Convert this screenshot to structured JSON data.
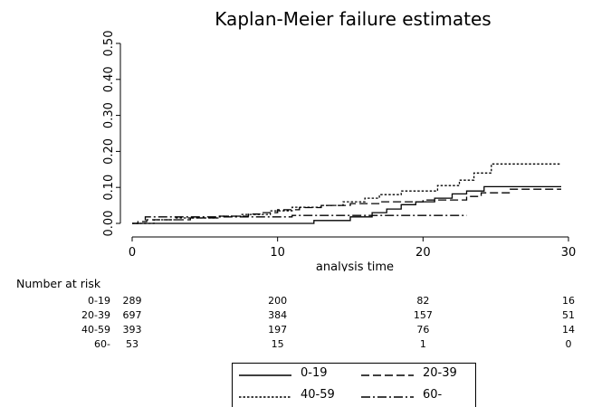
{
  "chart_data": {
    "type": "line",
    "title": "Kaplan-Meier failure estimates",
    "xlabel": "analysis time",
    "ylabel": "",
    "xlim": [
      0,
      30
    ],
    "ylim": [
      0,
      0.5
    ],
    "x_ticks": [
      "0",
      "10",
      "20",
      "30"
    ],
    "y_ticks": [
      "0.00",
      "0.10",
      "0.20",
      "0.30",
      "0.40",
      "0.50"
    ],
    "legend_position": "bottom",
    "series": [
      {
        "name": "0-19",
        "dash": "solid",
        "points": [
          [
            0,
            0
          ],
          [
            12.5,
            0
          ],
          [
            12.5,
            0.008
          ],
          [
            15,
            0.008
          ],
          [
            15,
            0.018
          ],
          [
            16.5,
            0.018
          ],
          [
            16.5,
            0.03
          ],
          [
            17.5,
            0.03
          ],
          [
            17.5,
            0.04
          ],
          [
            18.5,
            0.04
          ],
          [
            18.5,
            0.052
          ],
          [
            19.5,
            0.052
          ],
          [
            19.5,
            0.06
          ],
          [
            20.8,
            0.06
          ],
          [
            20.8,
            0.07
          ],
          [
            22,
            0.07
          ],
          [
            22,
            0.082
          ],
          [
            23,
            0.082
          ],
          [
            23,
            0.09
          ],
          [
            24.2,
            0.09
          ],
          [
            24.2,
            0.102
          ],
          [
            29.5,
            0.102
          ]
        ]
      },
      {
        "name": "20-39",
        "dash": "dashed",
        "points": [
          [
            0,
            0
          ],
          [
            0.4,
            0
          ],
          [
            0.4,
            0.005
          ],
          [
            1,
            0.005
          ],
          [
            1,
            0.01
          ],
          [
            4,
            0.01
          ],
          [
            4,
            0.015
          ],
          [
            6,
            0.015
          ],
          [
            6,
            0.02
          ],
          [
            8,
            0.02
          ],
          [
            8,
            0.026
          ],
          [
            9,
            0.026
          ],
          [
            9,
            0.03
          ],
          [
            10,
            0.03
          ],
          [
            10,
            0.038
          ],
          [
            11.5,
            0.038
          ],
          [
            11.5,
            0.044
          ],
          [
            13,
            0.044
          ],
          [
            13,
            0.05
          ],
          [
            15,
            0.05
          ],
          [
            15,
            0.055
          ],
          [
            17,
            0.055
          ],
          [
            17,
            0.06
          ],
          [
            20,
            0.06
          ],
          [
            20,
            0.065
          ],
          [
            23,
            0.065
          ],
          [
            23,
            0.075
          ],
          [
            24,
            0.075
          ],
          [
            24,
            0.085
          ],
          [
            26,
            0.085
          ],
          [
            26,
            0.095
          ],
          [
            29.5,
            0.095
          ]
        ]
      },
      {
        "name": "40-59",
        "dash": "dotted",
        "points": [
          [
            0,
            0
          ],
          [
            1.5,
            0
          ],
          [
            1.5,
            0.01
          ],
          [
            3,
            0.01
          ],
          [
            3,
            0.015
          ],
          [
            6,
            0.015
          ],
          [
            6,
            0.02
          ],
          [
            7.5,
            0.02
          ],
          [
            7.5,
            0.025
          ],
          [
            9.5,
            0.025
          ],
          [
            9.5,
            0.035
          ],
          [
            11,
            0.035
          ],
          [
            11,
            0.045
          ],
          [
            13,
            0.045
          ],
          [
            13,
            0.05
          ],
          [
            14.5,
            0.05
          ],
          [
            14.5,
            0.06
          ],
          [
            16,
            0.06
          ],
          [
            16,
            0.07
          ],
          [
            17,
            0.07
          ],
          [
            17,
            0.08
          ],
          [
            18.5,
            0.08
          ],
          [
            18.5,
            0.09
          ],
          [
            21,
            0.09
          ],
          [
            21,
            0.105
          ],
          [
            22.5,
            0.105
          ],
          [
            22.5,
            0.12
          ],
          [
            23.5,
            0.12
          ],
          [
            23.5,
            0.14
          ],
          [
            24.7,
            0.14
          ],
          [
            24.7,
            0.165
          ],
          [
            29.5,
            0.165
          ]
        ]
      },
      {
        "name": "60-",
        "dash": "dashdot",
        "points": [
          [
            0,
            0
          ],
          [
            0.9,
            0
          ],
          [
            0.9,
            0.018
          ],
          [
            6,
            0.018
          ],
          [
            6,
            0.018
          ],
          [
            11,
            0.018
          ],
          [
            11,
            0.022
          ],
          [
            23,
            0.022
          ]
        ]
      }
    ]
  },
  "risk_table": {
    "heading": "Number at risk",
    "time_points": [
      0,
      10,
      20,
      30
    ],
    "rows": [
      {
        "label": "0-19",
        "values": [
          "289",
          "200",
          "82",
          "16"
        ]
      },
      {
        "label": "20-39",
        "values": [
          "697",
          "384",
          "157",
          "51"
        ]
      },
      {
        "label": "40-59",
        "values": [
          "393",
          "197",
          "76",
          "14"
        ]
      },
      {
        "label": "60-",
        "values": [
          "53",
          "15",
          "1",
          "0"
        ]
      }
    ]
  }
}
